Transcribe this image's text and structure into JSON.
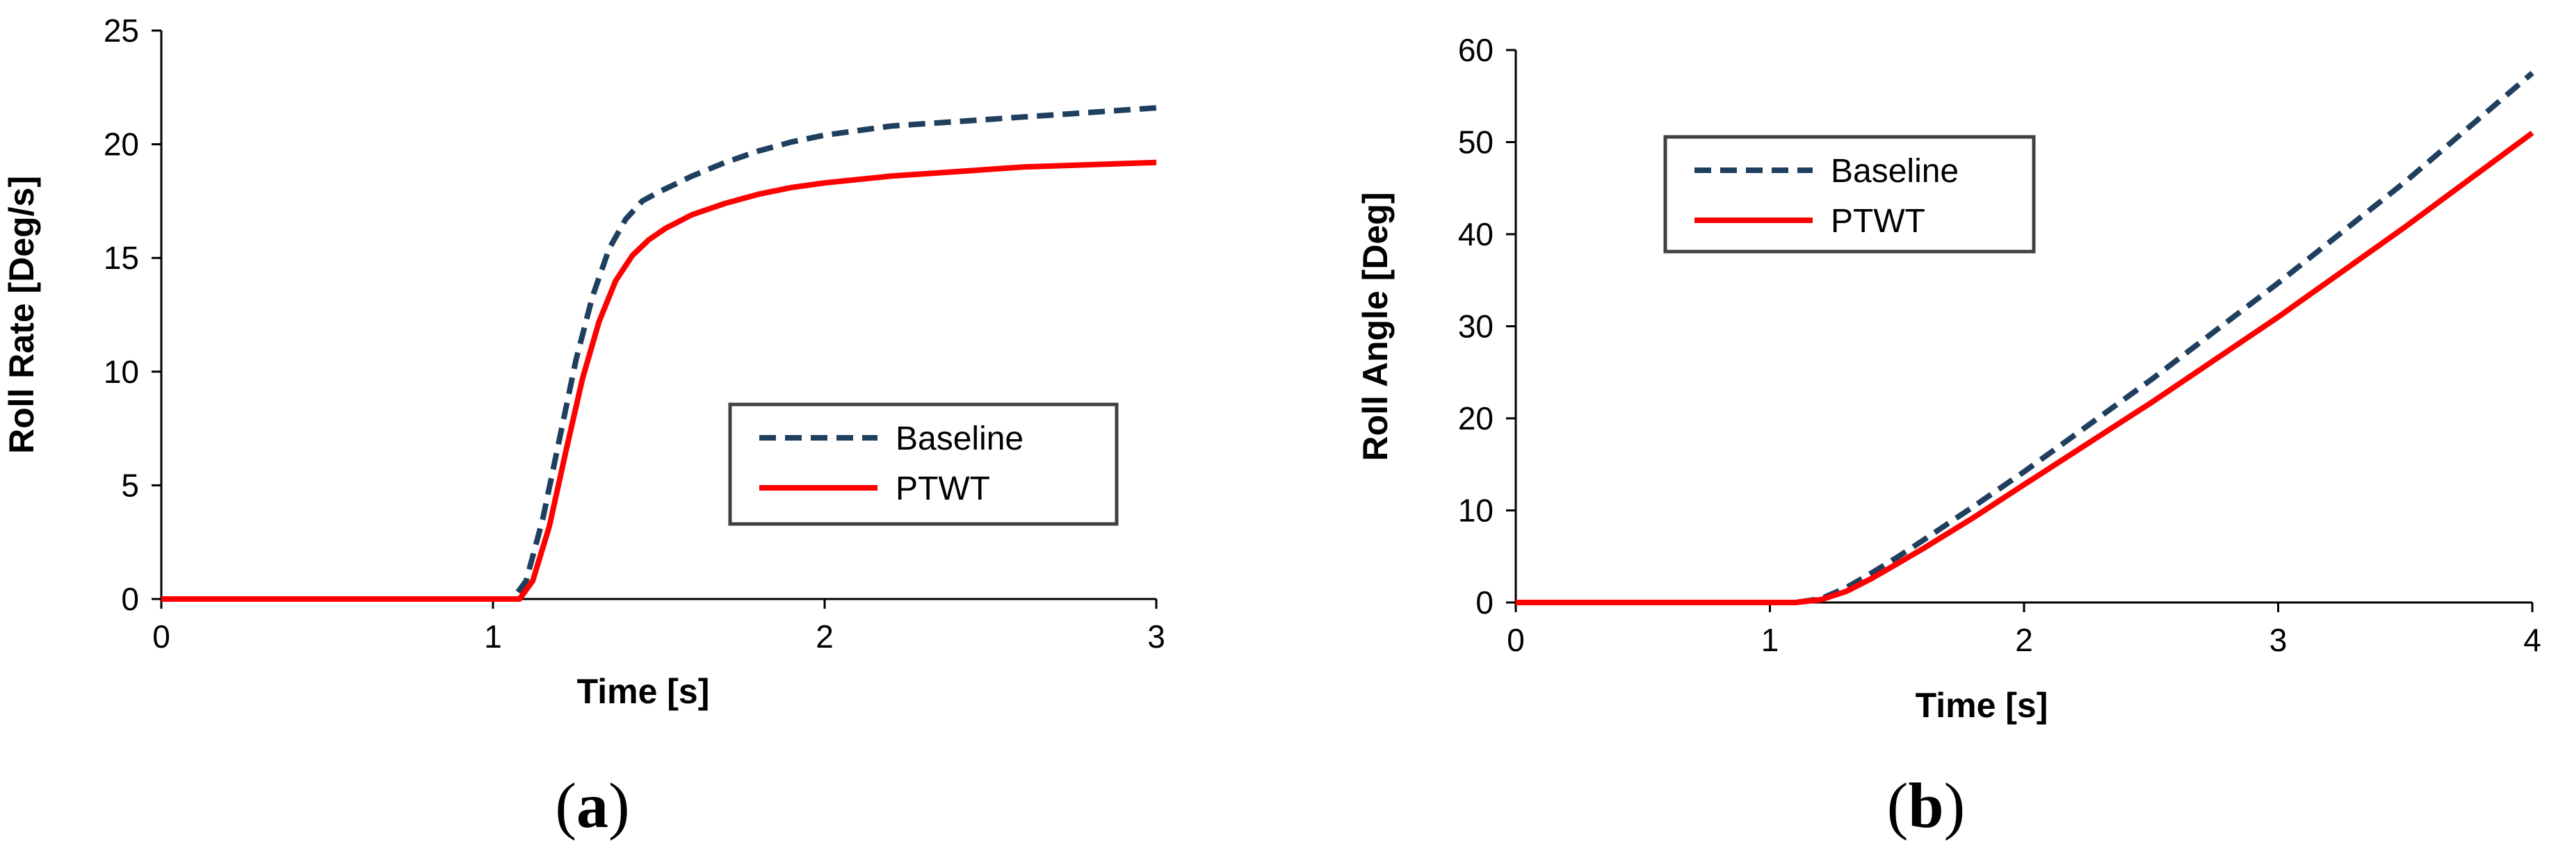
{
  "chart_data": [
    {
      "type": "line",
      "panel_label": "a",
      "xlabel": "Time [s]",
      "ylabel": "Roll Rate [Deg/s]",
      "xlim": [
        0,
        3
      ],
      "ylim": [
        0,
        25
      ],
      "xticks": [
        0,
        1,
        2,
        3
      ],
      "yticks": [
        0,
        5,
        10,
        15,
        20,
        25
      ],
      "grid": false,
      "legend_position": "right-center",
      "series": [
        {
          "name": "Baseline",
          "color": "#1F3F5F",
          "style": "dashed",
          "x": [
            0,
            1.0,
            1.06,
            1.1,
            1.15,
            1.2,
            1.25,
            1.3,
            1.35,
            1.4,
            1.45,
            1.5,
            1.6,
            1.7,
            1.8,
            1.9,
            2.0,
            2.2,
            2.4,
            2.6,
            2.8,
            3.0
          ],
          "values": [
            0,
            0,
            0,
            0.8,
            3.5,
            7.0,
            10.5,
            13.3,
            15.4,
            16.7,
            17.5,
            17.9,
            18.6,
            19.2,
            19.7,
            20.1,
            20.4,
            20.8,
            21.0,
            21.2,
            21.4,
            21.6
          ]
        },
        {
          "name": "PTWT",
          "color": "#FF0000",
          "style": "solid",
          "x": [
            0,
            1.0,
            1.08,
            1.12,
            1.17,
            1.22,
            1.27,
            1.32,
            1.37,
            1.42,
            1.47,
            1.52,
            1.6,
            1.7,
            1.8,
            1.9,
            2.0,
            2.2,
            2.4,
            2.6,
            2.8,
            3.0
          ],
          "values": [
            0,
            0,
            0,
            0.8,
            3.2,
            6.5,
            9.7,
            12.2,
            14.0,
            15.1,
            15.8,
            16.3,
            16.9,
            17.4,
            17.8,
            18.1,
            18.3,
            18.6,
            18.8,
            19.0,
            19.1,
            19.2
          ]
        }
      ]
    },
    {
      "type": "line",
      "panel_label": "b",
      "xlabel": "Time [s]",
      "ylabel": "Roll Angle [Deg]",
      "xlim": [
        0,
        4
      ],
      "ylim": [
        0,
        60
      ],
      "xticks": [
        0,
        1,
        2,
        3,
        4
      ],
      "yticks": [
        0,
        10,
        20,
        30,
        40,
        50,
        60
      ],
      "grid": false,
      "legend_position": "top-left",
      "series": [
        {
          "name": "Baseline",
          "color": "#1F3F5F",
          "style": "dashed",
          "x": [
            0,
            1.1,
            1.2,
            1.3,
            1.4,
            1.5,
            1.6,
            1.8,
            2.0,
            2.5,
            3.0,
            3.5,
            4.0
          ],
          "values": [
            0,
            0,
            0.4,
            1.6,
            3.2,
            4.9,
            6.7,
            10.4,
            14.2,
            24.2,
            34.7,
            45.7,
            57.5
          ]
        },
        {
          "name": "PTWT",
          "color": "#FF0000",
          "style": "solid",
          "x": [
            0,
            1.1,
            1.2,
            1.3,
            1.4,
            1.5,
            1.6,
            1.8,
            2.0,
            2.5,
            3.0,
            3.5,
            4.0
          ],
          "values": [
            0,
            0,
            0.3,
            1.2,
            2.6,
            4.2,
            5.8,
            9.2,
            12.8,
            21.7,
            31.0,
            40.8,
            51.0
          ]
        }
      ]
    }
  ]
}
